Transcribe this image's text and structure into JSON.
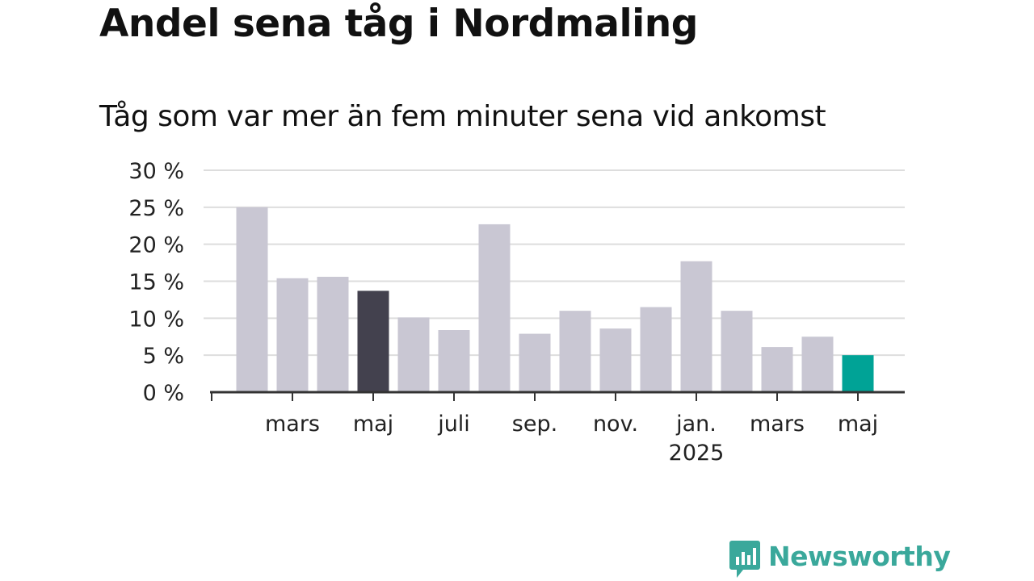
{
  "chart_data": {
    "type": "bar",
    "title": "Andel sena tåg i Nordmaling",
    "subtitle": "Tåg som var mer än fem minuter sena vid ankomst",
    "xlabel": "",
    "ylabel": "",
    "ylim": [
      0,
      30
    ],
    "yticks": [
      "0 %",
      "5 %",
      "10 %",
      "15 %",
      "20 %",
      "25 %",
      "30 %"
    ],
    "ytick_values": [
      0,
      5,
      10,
      15,
      20,
      25,
      30
    ],
    "x_tick_labels": [
      {
        "label": "mars",
        "bar_index": 1,
        "sub": ""
      },
      {
        "label": "maj",
        "bar_index": 3,
        "sub": ""
      },
      {
        "label": "juli",
        "bar_index": 5,
        "sub": ""
      },
      {
        "label": "sep.",
        "bar_index": 7,
        "sub": ""
      },
      {
        "label": "nov.",
        "bar_index": 9,
        "sub": ""
      },
      {
        "label": "jan.",
        "bar_index": 11,
        "sub": "2025"
      },
      {
        "label": "mars",
        "bar_index": 13,
        "sub": ""
      },
      {
        "label": "maj",
        "bar_index": 15,
        "sub": ""
      }
    ],
    "categories": [
      "2024-02",
      "2024-03",
      "2024-04",
      "2024-05",
      "2024-06",
      "2024-07",
      "2024-08",
      "2024-09",
      "2024-10",
      "2024-11",
      "2024-12",
      "2025-01",
      "2025-02",
      "2025-03",
      "2025-04",
      "2025-05"
    ],
    "values": [
      25.0,
      15.4,
      15.6,
      13.7,
      10.1,
      8.4,
      22.7,
      7.9,
      11.0,
      8.6,
      11.5,
      17.7,
      11.0,
      6.1,
      7.5,
      5.0
    ],
    "highlight": {
      "3": "#43414e",
      "15": "#00a396"
    },
    "bar_color": "#c9c7d3",
    "grid": true,
    "legend": "none"
  },
  "brand": {
    "name": "Newsworthy",
    "icon": "newsworthy-logo-icon",
    "color": "#3aa89b"
  }
}
